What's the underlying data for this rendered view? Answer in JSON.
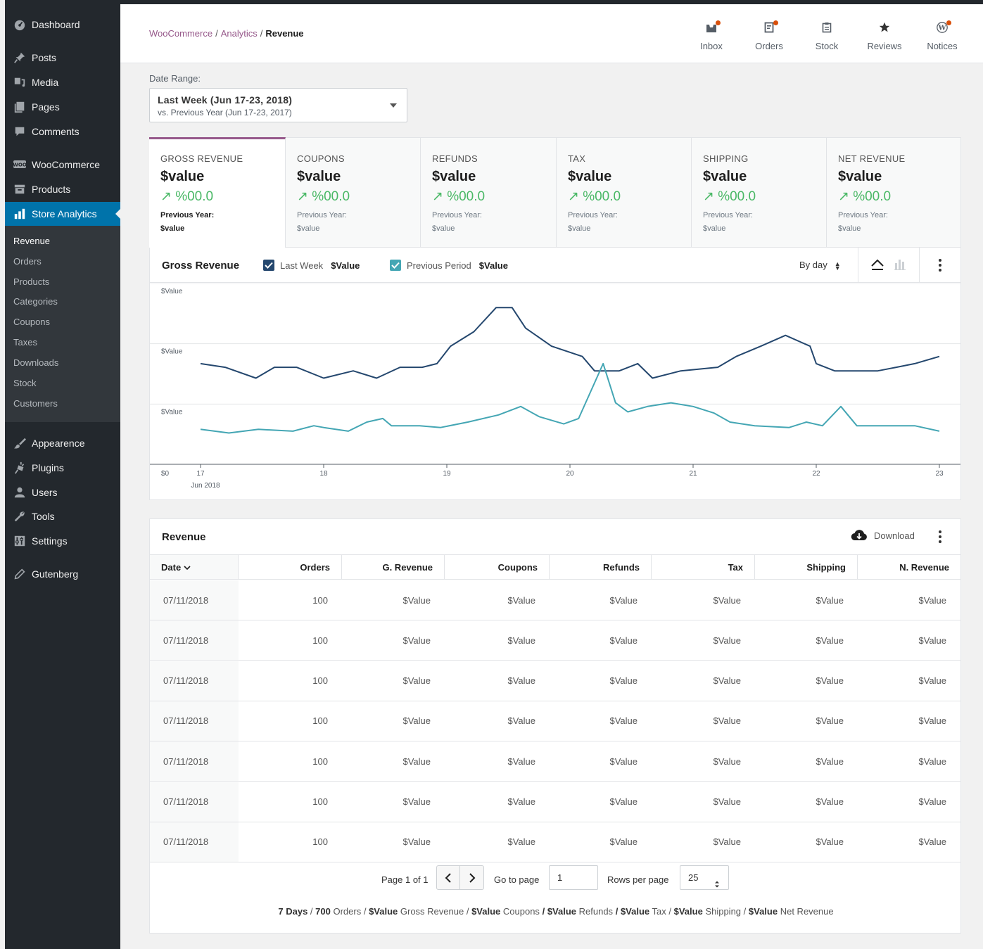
{
  "sidebar": {
    "items": [
      {
        "label": "Dashboard",
        "icon": "dashboard-icon"
      },
      {
        "label": "Posts",
        "icon": "pin-icon"
      },
      {
        "label": "Media",
        "icon": "media-icon"
      },
      {
        "label": "Pages",
        "icon": "pages-icon"
      },
      {
        "label": "Comments",
        "icon": "comment-icon"
      },
      {
        "label": "WooCommerce",
        "icon": "woo-icon"
      },
      {
        "label": "Products",
        "icon": "archive-icon"
      },
      {
        "label": "Store Analytics",
        "icon": "bar-chart-icon"
      },
      {
        "label": "Appearence",
        "icon": "brush-icon"
      },
      {
        "label": "Plugins",
        "icon": "plugin-icon"
      },
      {
        "label": "Users",
        "icon": "user-icon"
      },
      {
        "label": "Tools",
        "icon": "wrench-icon"
      },
      {
        "label": "Settings",
        "icon": "settings-icon"
      },
      {
        "label": "Gutenberg",
        "icon": "pencil-icon"
      }
    ],
    "submenu": [
      "Revenue",
      "Orders",
      "Products",
      "Categories",
      "Coupons",
      "Taxes",
      "Downloads",
      "Stock",
      "Customers"
    ]
  },
  "header": {
    "breadcrumb": {
      "part1": "WooCommerce",
      "sep": "/",
      "part2": "Analytics",
      "current": "Revenue"
    },
    "actions": [
      {
        "label": "Inbox",
        "icon": "inbox-icon",
        "notification": true
      },
      {
        "label": "Orders",
        "icon": "orders-icon",
        "notification": true
      },
      {
        "label": "Stock",
        "icon": "clipboard-icon",
        "notification": false
      },
      {
        "label": "Reviews",
        "icon": "star-icon",
        "notification": false
      },
      {
        "label": "Notices",
        "icon": "wordpress-icon",
        "notification": true
      }
    ]
  },
  "date_range": {
    "label": "Date Range:",
    "primary": "Last Week (Jun 17-23, 2018)",
    "secondary": "vs. Previous Year (Jun 17-23, 2017)"
  },
  "summary": [
    {
      "label": "GROSS REVENUE",
      "value": "$value",
      "delta": "%00.0",
      "prev_label": "Previous Year:",
      "prev_value": "$value"
    },
    {
      "label": "COUPONS",
      "value": "$value",
      "delta": "%00.0",
      "prev_label": "Previous Year:",
      "prev_value": "$value"
    },
    {
      "label": "REFUNDS",
      "value": "$value",
      "delta": "%00.0",
      "prev_label": "Previous Year:",
      "prev_value": "$value"
    },
    {
      "label": "TAX",
      "value": "$value",
      "delta": "%00.0",
      "prev_label": "Previous Year:",
      "prev_value": "$value"
    },
    {
      "label": "SHIPPING",
      "value": "$value",
      "delta": "%00.0",
      "prev_label": "Previous Year:",
      "prev_value": "$value"
    },
    {
      "label": "NET REVENUE",
      "value": "$value",
      "delta": "%00.0",
      "prev_label": "Previous Year:",
      "prev_value": "$value"
    }
  ],
  "chart": {
    "title": "Gross Revenue",
    "legend": [
      {
        "label": "Last Week",
        "value": "$Value",
        "color": "#24476e"
      },
      {
        "label": "Previous Period",
        "value": "$Value",
        "color": "#44a6b4"
      }
    ],
    "interval": "By day"
  },
  "chart_data": {
    "type": "line",
    "y_tick_labels": [
      "$Value",
      "$Value",
      "$Value",
      "$0"
    ],
    "x_tick_labels": [
      "17",
      "18",
      "19",
      "20",
      "21",
      "22",
      "23"
    ],
    "x_sublabel": "Jun 2018",
    "ylim": [
      0,
      3
    ],
    "xlim": [
      17,
      23
    ],
    "series": [
      {
        "name": "Last Week",
        "color": "#24476e",
        "points": [
          [
            17.0,
            1.67
          ],
          [
            17.2,
            1.61
          ],
          [
            17.45,
            1.43
          ],
          [
            17.6,
            1.61
          ],
          [
            17.78,
            1.61
          ],
          [
            18.0,
            1.43
          ],
          [
            18.24,
            1.55
          ],
          [
            18.43,
            1.43
          ],
          [
            18.62,
            1.61
          ],
          [
            18.8,
            1.61
          ],
          [
            18.92,
            1.67
          ],
          [
            19.03,
            1.96
          ],
          [
            19.22,
            2.2
          ],
          [
            19.4,
            2.6
          ],
          [
            19.53,
            2.6
          ],
          [
            19.64,
            2.26
          ],
          [
            19.85,
            1.96
          ],
          [
            20.1,
            1.79
          ],
          [
            20.2,
            1.55
          ],
          [
            20.4,
            1.55
          ],
          [
            20.55,
            1.67
          ],
          [
            20.67,
            1.43
          ],
          [
            20.9,
            1.55
          ],
          [
            21.2,
            1.61
          ],
          [
            21.35,
            1.79
          ],
          [
            21.55,
            1.96
          ],
          [
            21.75,
            2.14
          ],
          [
            21.95,
            1.96
          ],
          [
            22.0,
            1.67
          ],
          [
            22.15,
            1.55
          ],
          [
            22.5,
            1.55
          ],
          [
            22.65,
            1.61
          ],
          [
            22.8,
            1.67
          ],
          [
            23.0,
            1.79
          ]
        ]
      },
      {
        "name": "Previous Period",
        "color": "#44a6b4",
        "points": [
          [
            17.0,
            0.58
          ],
          [
            17.23,
            0.52
          ],
          [
            17.47,
            0.58
          ],
          [
            17.75,
            0.55
          ],
          [
            17.92,
            0.64
          ],
          [
            18.0,
            0.61
          ],
          [
            18.2,
            0.55
          ],
          [
            18.35,
            0.7
          ],
          [
            18.48,
            0.76
          ],
          [
            18.55,
            0.64
          ],
          [
            18.78,
            0.64
          ],
          [
            18.95,
            0.61
          ],
          [
            19.17,
            0.7
          ],
          [
            19.42,
            0.82
          ],
          [
            19.6,
            0.96
          ],
          [
            19.75,
            0.79
          ],
          [
            19.95,
            0.67
          ],
          [
            20.07,
            0.76
          ],
          [
            20.27,
            1.67
          ],
          [
            20.37,
            1.02
          ],
          [
            20.47,
            0.87
          ],
          [
            20.63,
            0.96
          ],
          [
            20.82,
            1.02
          ],
          [
            21.0,
            0.96
          ],
          [
            21.17,
            0.85
          ],
          [
            21.3,
            0.7
          ],
          [
            21.5,
            0.64
          ],
          [
            21.78,
            0.61
          ],
          [
            21.92,
            0.7
          ],
          [
            22.05,
            0.64
          ],
          [
            22.2,
            0.96
          ],
          [
            22.33,
            0.64
          ],
          [
            22.47,
            0.64
          ],
          [
            22.68,
            0.64
          ],
          [
            22.8,
            0.64
          ],
          [
            23.0,
            0.55
          ]
        ]
      }
    ]
  },
  "table": {
    "title": "Revenue",
    "download_label": "Download",
    "columns": [
      "Date",
      "Orders",
      "G. Revenue",
      "Coupons",
      "Refunds",
      "Tax",
      "Shipping",
      "N. Revenue"
    ],
    "rows": [
      [
        "07/11/2018",
        "100",
        "$Value",
        "$Value",
        "$Value",
        "$Value",
        "$Value",
        "$Value"
      ],
      [
        "07/11/2018",
        "100",
        "$Value",
        "$Value",
        "$Value",
        "$Value",
        "$Value",
        "$Value"
      ],
      [
        "07/11/2018",
        "100",
        "$Value",
        "$Value",
        "$Value",
        "$Value",
        "$Value",
        "$Value"
      ],
      [
        "07/11/2018",
        "100",
        "$Value",
        "$Value",
        "$Value",
        "$Value",
        "$Value",
        "$Value"
      ],
      [
        "07/11/2018",
        "100",
        "$Value",
        "$Value",
        "$Value",
        "$Value",
        "$Value",
        "$Value"
      ],
      [
        "07/11/2018",
        "100",
        "$Value",
        "$Value",
        "$Value",
        "$Value",
        "$Value",
        "$Value"
      ],
      [
        "07/11/2018",
        "100",
        "$Value",
        "$Value",
        "$Value",
        "$Value",
        "$Value",
        "$Value"
      ]
    ]
  },
  "pagination": {
    "page_text": "Page 1 of 1",
    "go_to_label": "Go to page",
    "go_to_value": "1",
    "rows_label": "Rows per page",
    "rows_value": "25",
    "summary": {
      "days": "7 Days",
      "orders": "700",
      "orders_label": "Orders",
      "gross": "$Value",
      "gross_label": "Gross Revenue",
      "coupons": "$Value",
      "coupons_label": "Coupons",
      "refunds": "$Value",
      "refunds_label": "Refunds",
      "tax": "$Value",
      "tax_label": "Tax",
      "shipping": "$Value",
      "shipping_label": "Shipping",
      "net": "$Value",
      "net_label": "Net Revenue"
    }
  },
  "colors": {
    "accent": "#96588a",
    "admin_blue": "#0073aa",
    "sidebar_bg": "#23282d",
    "positive": "#4ab866",
    "notification": "#d94f0a"
  }
}
